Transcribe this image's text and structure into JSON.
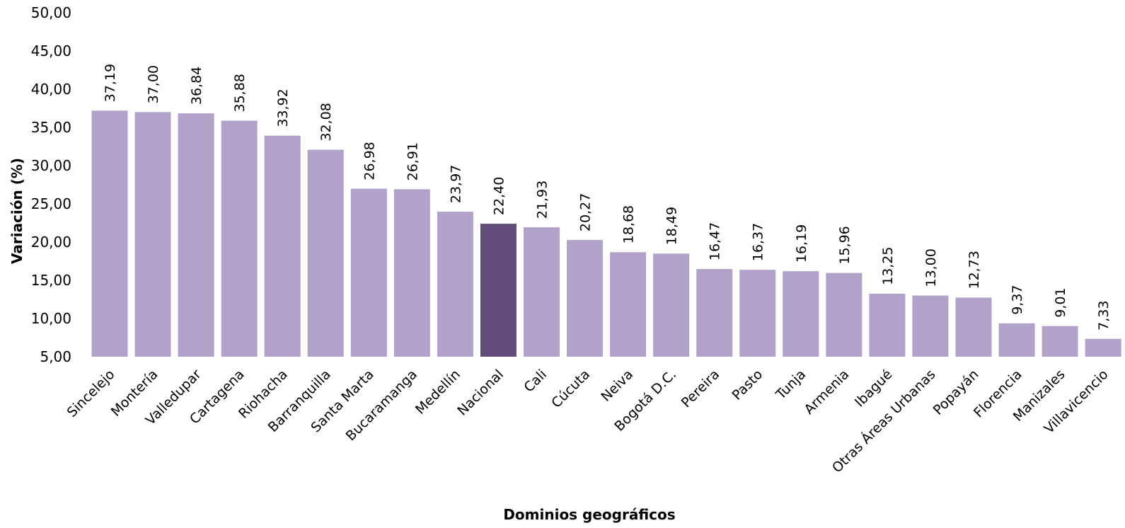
{
  "chart_data": {
    "type": "bar",
    "xlabel": "Dominios geográficos",
    "ylabel": "Variación (%)",
    "ylim": [
      5,
      50
    ],
    "ytick_step": 5,
    "ytick_labels": [
      "5,00",
      "10,00",
      "15,00",
      "20,00",
      "25,00",
      "30,00",
      "35,00",
      "40,00",
      "45,00",
      "50,00"
    ],
    "grid": false,
    "legend": "none",
    "categories": [
      "Sincelejo",
      "Montería",
      "Valledupar",
      "Cartagena",
      "Riohacha",
      "Barranquilla",
      "Santa Marta",
      "Bucaramanga",
      "Medellín",
      "Nacional",
      "Cali",
      "Cúcuta",
      "Neiva",
      "Bogotá D.C.",
      "Pereira",
      "Pasto",
      "Tunja",
      "Armenia",
      "Ibagué",
      "Otras Áreas Urbanas",
      "Popayán",
      "Florencia",
      "Manizales",
      "Villavicencio"
    ],
    "values": [
      37.19,
      37.0,
      36.84,
      35.88,
      33.92,
      32.08,
      26.98,
      26.91,
      23.97,
      22.4,
      21.93,
      20.27,
      18.68,
      18.49,
      16.47,
      16.37,
      16.19,
      15.96,
      13.25,
      13.0,
      12.73,
      9.37,
      9.01,
      7.33
    ],
    "value_labels": [
      "37,19",
      "37,00",
      "36,84",
      "35,88",
      "33,92",
      "32,08",
      "26,98",
      "26,91",
      "23,97",
      "22,40",
      "21,93",
      "20,27",
      "18,68",
      "18,49",
      "16,47",
      "16,37",
      "16,19",
      "15,96",
      "13,25",
      "13,00",
      "12,73",
      "9,37",
      "9,01",
      "7,33"
    ],
    "highlight_category": "Nacional",
    "colors": {
      "bar": "#b1a2c9",
      "highlight": "#614b7b"
    }
  }
}
